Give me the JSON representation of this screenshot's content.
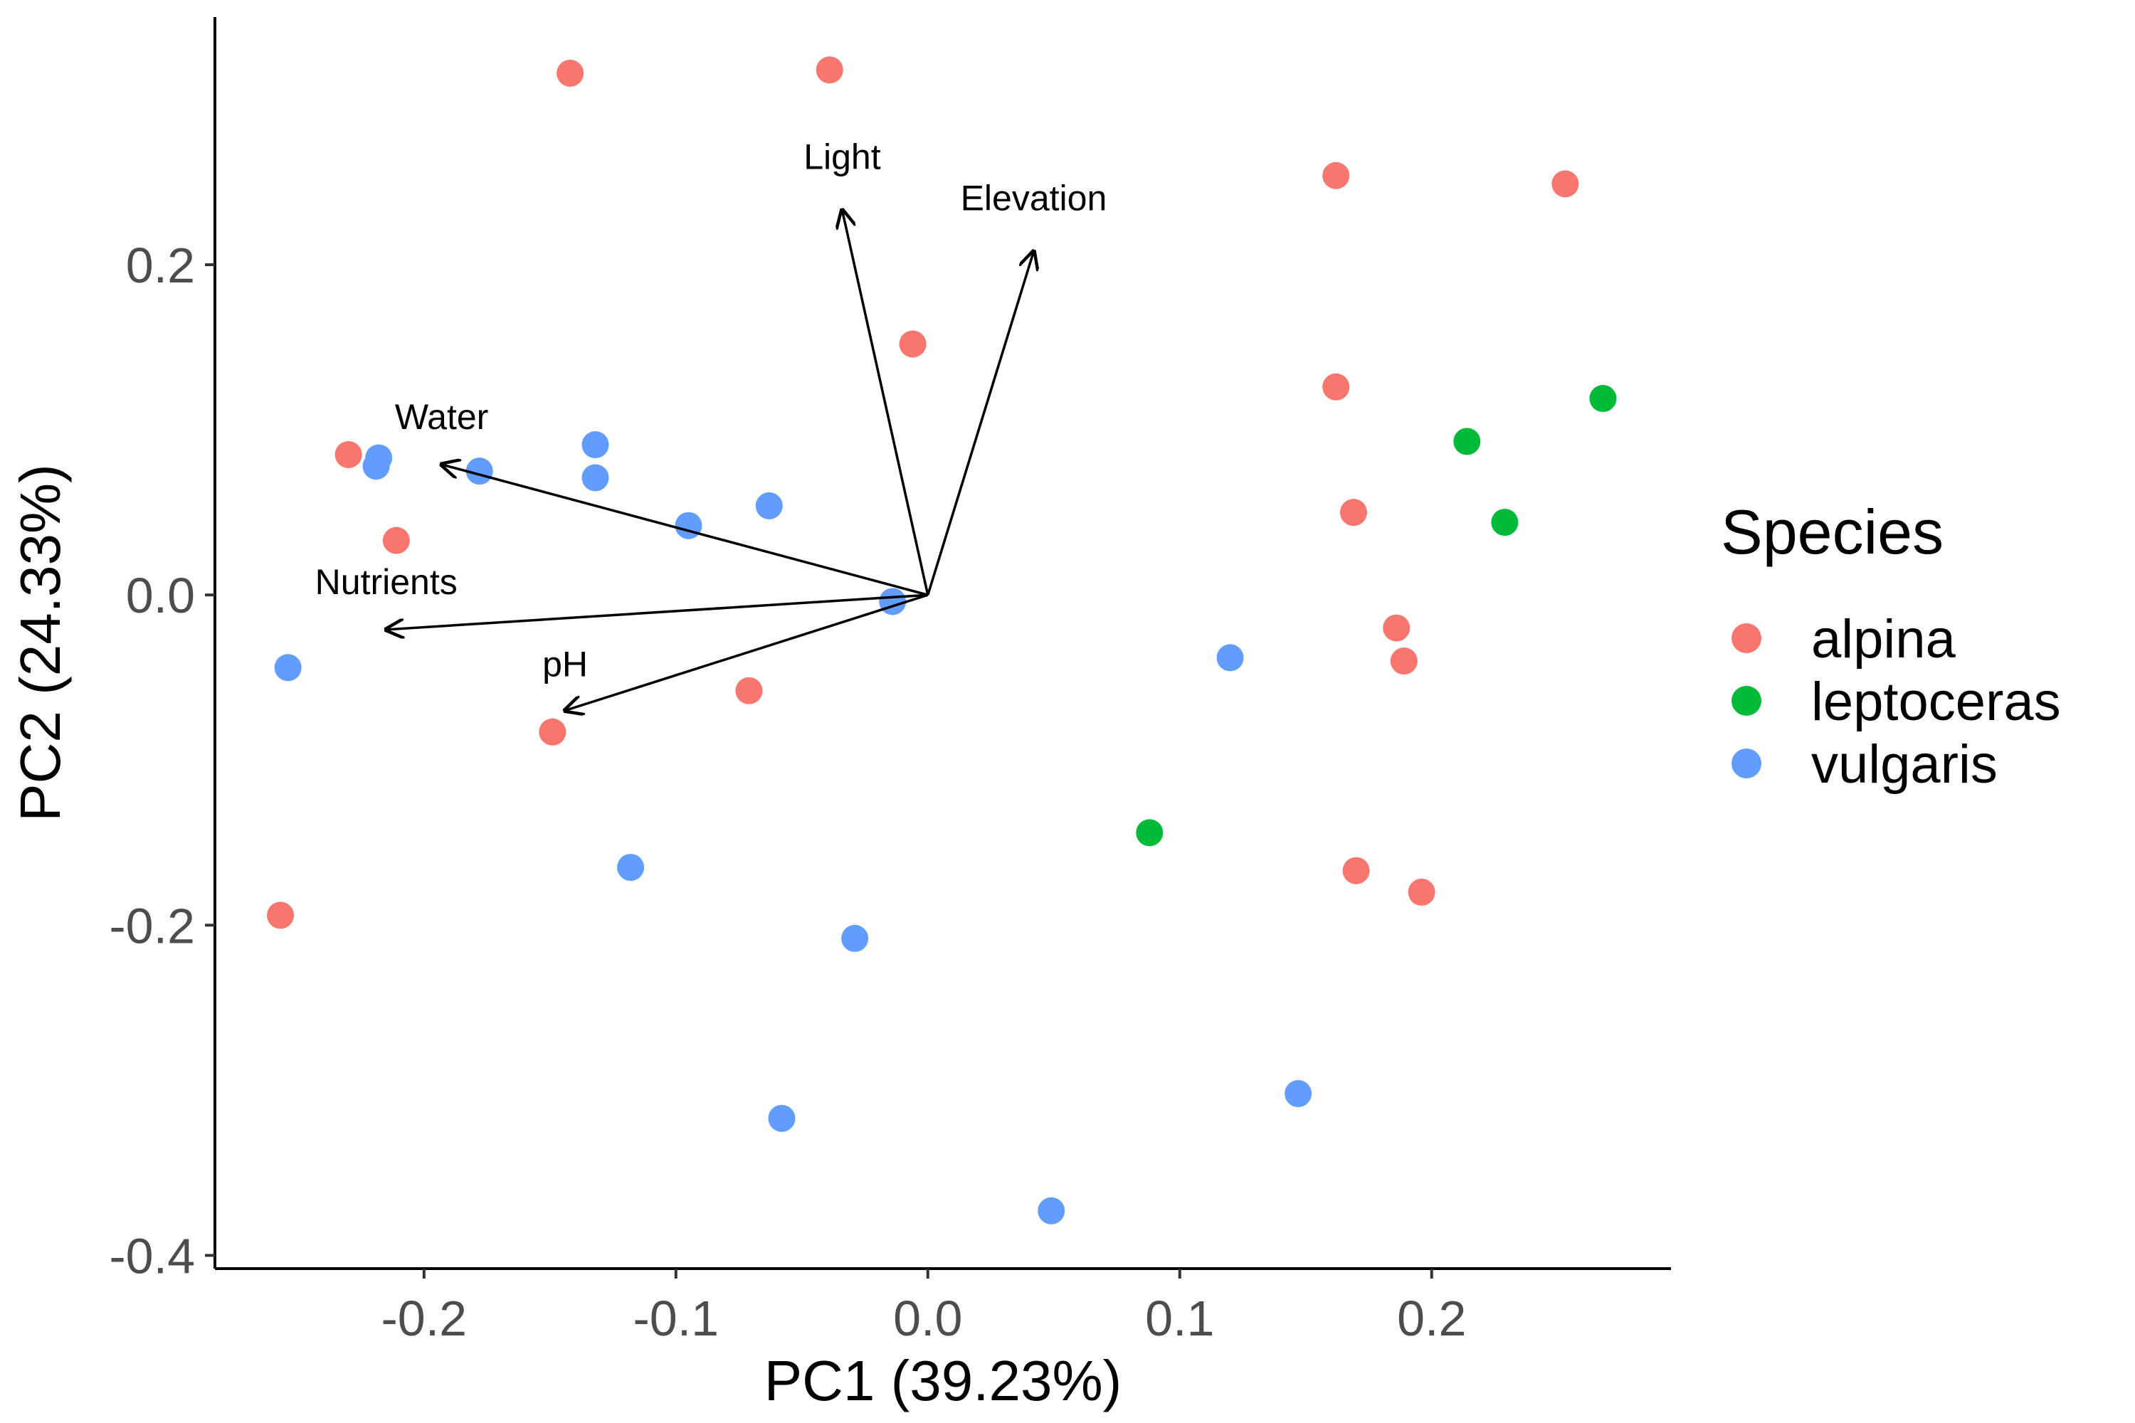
{
  "chart_data": {
    "type": "scatter",
    "xlabel": "PC1 (39.23%)",
    "ylabel": "PC2 (24.33%)",
    "xlim": [
      -0.283,
      0.295
    ],
    "ylim": [
      -0.408,
      0.35
    ],
    "x_ticks": [
      {
        "value": -0.2,
        "label": "-0.2"
      },
      {
        "value": -0.1,
        "label": "-0.1"
      },
      {
        "value": 0.0,
        "label": "0.0"
      },
      {
        "value": 0.1,
        "label": "0.1"
      },
      {
        "value": 0.2,
        "label": "0.2"
      }
    ],
    "y_ticks": [
      {
        "value": 0.2,
        "label": "0.2"
      },
      {
        "value": 0.0,
        "label": "0.0"
      },
      {
        "value": -0.2,
        "label": "-0.2"
      },
      {
        "value": -0.4,
        "label": "-0.4"
      }
    ],
    "grid": false,
    "legend": {
      "title": "Species",
      "position": "right"
    },
    "series": [
      {
        "name": "alpina",
        "color": "#F8766D",
        "points": [
          {
            "x": -0.142,
            "y": 0.316
          },
          {
            "x": -0.039,
            "y": 0.318
          },
          {
            "x": 0.162,
            "y": 0.254
          },
          {
            "x": 0.253,
            "y": 0.249
          },
          {
            "x": -0.006,
            "y": 0.152
          },
          {
            "x": 0.162,
            "y": 0.126
          },
          {
            "x": -0.23,
            "y": 0.085
          },
          {
            "x": -0.211,
            "y": 0.033
          },
          {
            "x": 0.169,
            "y": 0.05
          },
          {
            "x": 0.186,
            "y": -0.02
          },
          {
            "x": 0.189,
            "y": -0.04
          },
          {
            "x": -0.071,
            "y": -0.058
          },
          {
            "x": -0.149,
            "y": -0.083
          },
          {
            "x": 0.17,
            "y": -0.167
          },
          {
            "x": 0.196,
            "y": -0.18
          },
          {
            "x": -0.257,
            "y": -0.194
          }
        ]
      },
      {
        "name": "leptoceras",
        "color": "#00BA38",
        "points": [
          {
            "x": 0.268,
            "y": 0.119
          },
          {
            "x": 0.214,
            "y": 0.093
          },
          {
            "x": 0.229,
            "y": 0.044
          },
          {
            "x": 0.088,
            "y": -0.144
          }
        ]
      },
      {
        "name": "vulgaris",
        "color": "#619CFF",
        "points": [
          {
            "x": -0.218,
            "y": 0.083
          },
          {
            "x": -0.219,
            "y": 0.078
          },
          {
            "x": -0.178,
            "y": 0.075
          },
          {
            "x": -0.132,
            "y": 0.091
          },
          {
            "x": -0.132,
            "y": 0.071
          },
          {
            "x": -0.095,
            "y": 0.042
          },
          {
            "x": -0.063,
            "y": 0.054
          },
          {
            "x": -0.014,
            "y": -0.004
          },
          {
            "x": -0.254,
            "y": -0.044
          },
          {
            "x": 0.12,
            "y": -0.038
          },
          {
            "x": -0.118,
            "y": -0.165
          },
          {
            "x": -0.029,
            "y": -0.208
          },
          {
            "x": -0.058,
            "y": -0.317
          },
          {
            "x": 0.147,
            "y": -0.302
          },
          {
            "x": 0.049,
            "y": -0.373
          }
        ]
      }
    ],
    "loadings": [
      {
        "name": "Light",
        "x": -0.034,
        "y": 0.233
      },
      {
        "name": "Elevation",
        "x": 0.042,
        "y": 0.208
      },
      {
        "name": "Water",
        "x": -0.193,
        "y": 0.079
      },
      {
        "name": "Nutrients",
        "x": -0.215,
        "y": -0.021
      },
      {
        "name": "pH",
        "x": -0.144,
        "y": -0.07
      }
    ]
  }
}
